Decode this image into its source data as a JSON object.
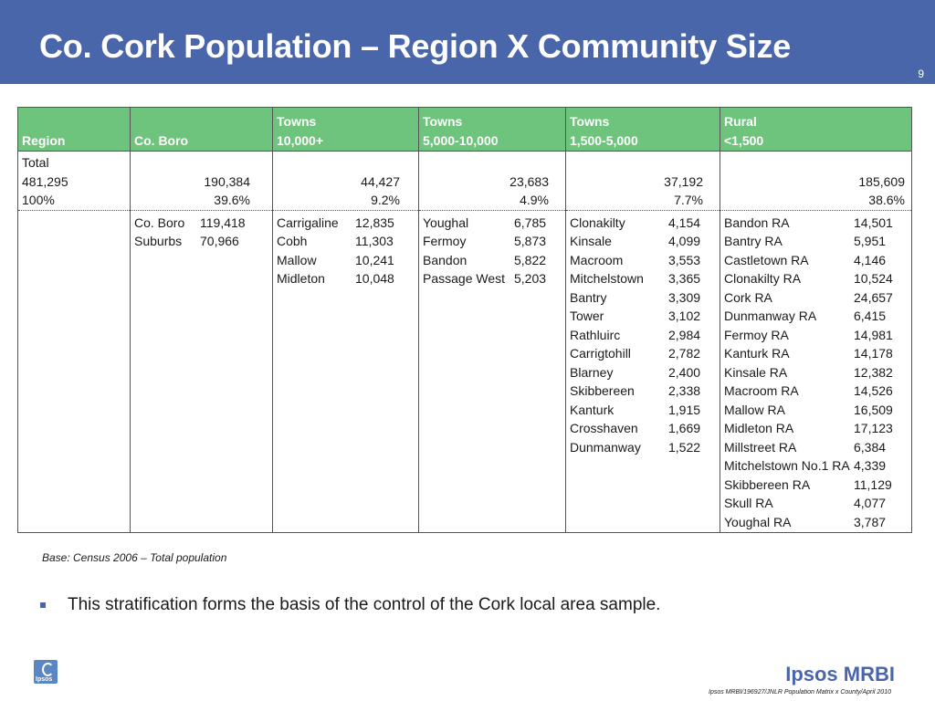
{
  "slide": {
    "title": "Co. Cork Population – Region X Community Size",
    "page_number": "9",
    "base_note": "Base: Census 2006 – Total population",
    "bullet": "This stratification forms the basis of the control of the Cork local area sample.",
    "logo_mini": "Ipsos",
    "brand": "Ipsos MRBI",
    "footer_ref": "Ipsos MRBI/196927/JNLR Population Matrix x County/April 2010"
  },
  "table": {
    "headers": [
      {
        "line1": "",
        "line2": "Region"
      },
      {
        "line1": "",
        "line2": "Co. Boro"
      },
      {
        "line1": "Towns",
        "line2": "10,000+"
      },
      {
        "line1": "Towns",
        "line2": "5,000-10,000"
      },
      {
        "line1": "Towns",
        "line2": "1,500-5,000"
      },
      {
        "line1": "Rural",
        "line2": "<1,500"
      }
    ],
    "total": {
      "region": [
        "Total",
        "481,295",
        "100%"
      ],
      "columns": [
        [
          "190,384",
          "39.6%"
        ],
        [
          "44,427",
          "9.2%"
        ],
        [
          "23,683",
          "4.9%"
        ],
        [
          "37,192",
          "7.7%"
        ],
        [
          "185,609",
          "38.6%"
        ]
      ]
    },
    "detail": [
      [
        {
          "name": "Co. Boro",
          "value": "119,418"
        },
        {
          "name": "Suburbs",
          "value": "70,966"
        }
      ],
      [
        {
          "name": "Carrigaline",
          "value": "12,835"
        },
        {
          "name": "Cobh",
          "value": "11,303"
        },
        {
          "name": "Mallow",
          "value": "10,241"
        },
        {
          "name": "Midleton",
          "value": "10,048"
        }
      ],
      [
        {
          "name": "Youghal",
          "value": "6,785"
        },
        {
          "name": "Fermoy",
          "value": "5,873"
        },
        {
          "name": "Bandon",
          "value": "5,822"
        },
        {
          "name": "Passage West",
          "value": "5,203"
        }
      ],
      [
        {
          "name": "Clonakilty",
          "value": "4,154"
        },
        {
          "name": "Kinsale",
          "value": "4,099"
        },
        {
          "name": "Macroom",
          "value": "3,553"
        },
        {
          "name": "Mitchelstown",
          "value": "3,365"
        },
        {
          "name": "Bantry",
          "value": "3,309"
        },
        {
          "name": "Tower",
          "value": "3,102"
        },
        {
          "name": "Rathluirc",
          "value": "2,984"
        },
        {
          "name": "Carrigtohill",
          "value": "2,782"
        },
        {
          "name": "Blarney",
          "value": "2,400"
        },
        {
          "name": "Skibbereen",
          "value": "2,338"
        },
        {
          "name": "Kanturk",
          "value": "1,915"
        },
        {
          "name": "Crosshaven",
          "value": "1,669"
        },
        {
          "name": "Dunmanway",
          "value": "1,522"
        }
      ],
      [
        {
          "name": "Bandon RA",
          "value": "14,501"
        },
        {
          "name": "Bantry RA",
          "value": "5,951"
        },
        {
          "name": "Castletown RA",
          "value": "4,146"
        },
        {
          "name": "Clonakilty RA",
          "value": "10,524"
        },
        {
          "name": "Cork RA",
          "value": "24,657"
        },
        {
          "name": "Dunmanway RA",
          "value": "6,415"
        },
        {
          "name": "Fermoy RA",
          "value": "14,981"
        },
        {
          "name": "Kanturk RA",
          "value": "14,178"
        },
        {
          "name": "Kinsale RA",
          "value": "12,382"
        },
        {
          "name": "Macroom RA",
          "value": "14,526"
        },
        {
          "name": "Mallow RA",
          "value": "16,509"
        },
        {
          "name": "Midleton RA",
          "value": "17,123"
        },
        {
          "name": "Millstreet RA",
          "value": "6,384"
        },
        {
          "name": "Mitchelstown No.1 RA",
          "value": "4,339"
        },
        {
          "name": "Skibbereen RA",
          "value": "11,129"
        },
        {
          "name": "Skull RA",
          "value": "4,077"
        },
        {
          "name": "Youghal RA",
          "value": "3,787"
        }
      ]
    ]
  },
  "colors": {
    "title_bar": "#4a66ab",
    "header_fill": "#6ec47c",
    "brand": "#4a66ab"
  }
}
